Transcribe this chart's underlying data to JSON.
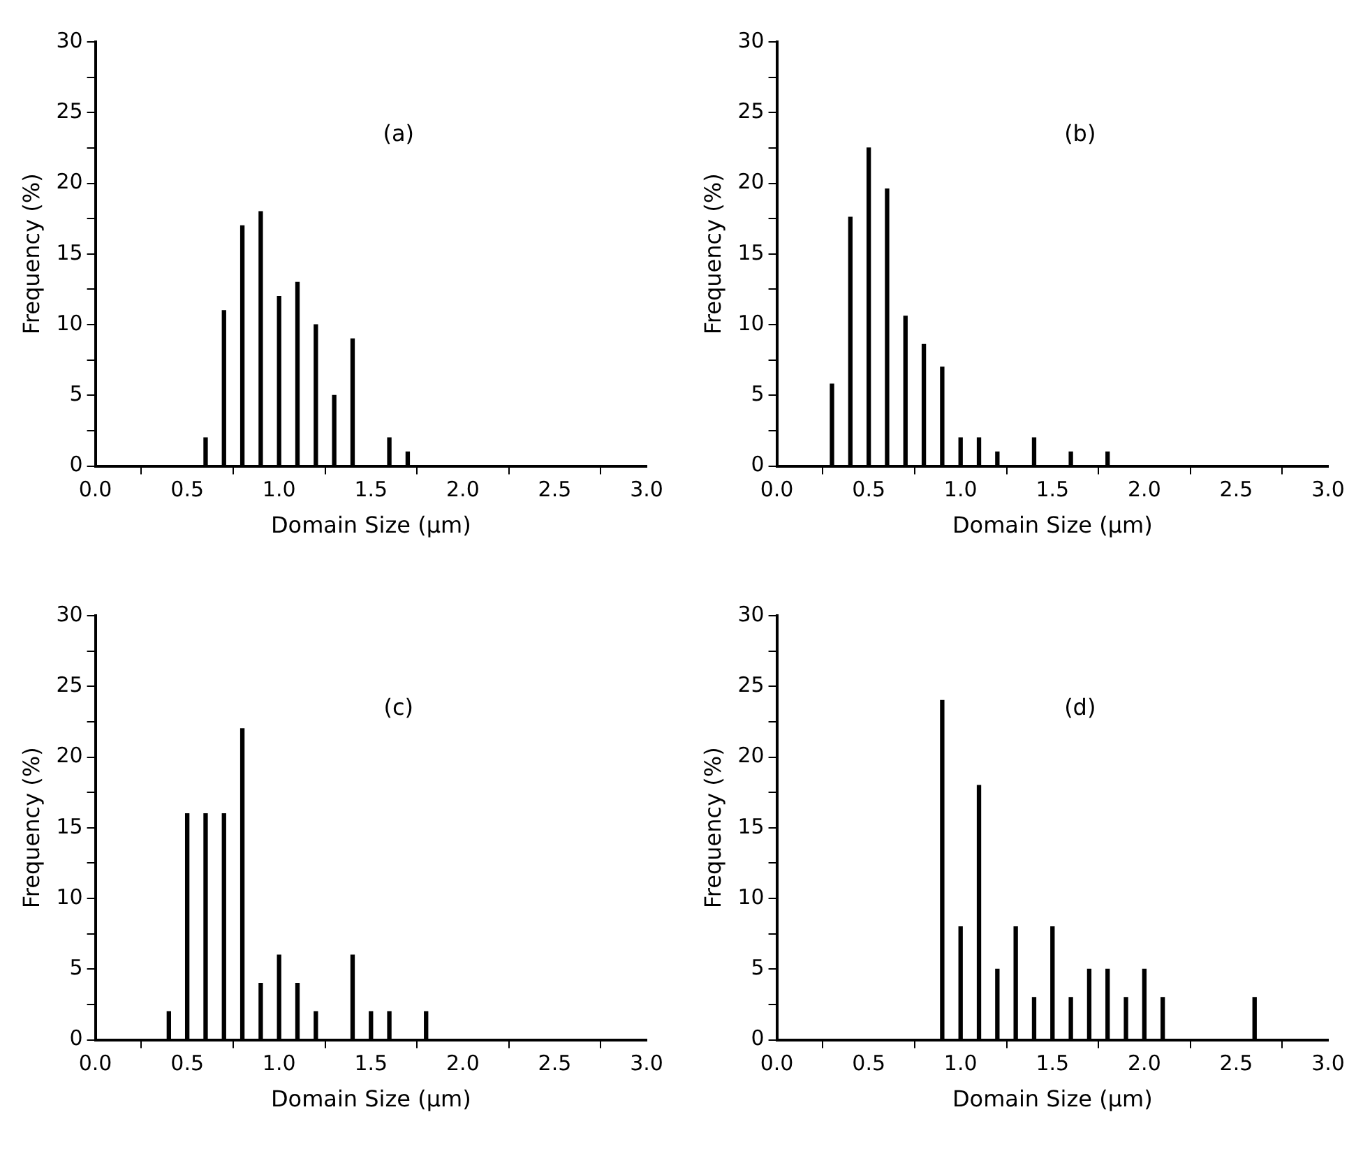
{
  "chart_data": [
    {
      "type": "bar",
      "xlabel": "Domain Size (µm)",
      "ylabel": "Frequency (%)",
      "annotations": [
        "(a)"
      ],
      "x": [
        0.6,
        0.7,
        0.8,
        0.9,
        1.0,
        1.1,
        1.2,
        1.3,
        1.4,
        1.6,
        1.7
      ],
      "values": [
        2,
        11,
        17,
        18,
        12,
        13,
        10,
        5,
        9,
        2,
        1
      ],
      "color": "#000000",
      "xlim": [
        0,
        3
      ],
      "xticks": [
        {
          "value": 0,
          "label": "0.0"
        },
        0.5,
        {
          "value": 1,
          "label": "1.0"
        },
        1.5,
        {
          "value": 2,
          "label": "2.0"
        },
        2.5,
        {
          "value": 3,
          "label": "3.0"
        }
      ],
      "ylim": [
        0,
        30
      ],
      "yticks": [
        0,
        {
          "value": 2.5,
          "label": null
        },
        5,
        {
          "value": 7.5,
          "label": null
        },
        10,
        {
          "value": 12.5,
          "label": null
        },
        15,
        {
          "value": 17.5,
          "label": null
        },
        20,
        {
          "value": 22.5,
          "label": null
        },
        25,
        {
          "value": 27.5,
          "label": null
        },
        30
      ],
      "grid": false,
      "legend": false
    },
    {
      "type": "bar",
      "xlabel": "Domain Size (µm)",
      "ylabel": "Frequency (%)",
      "annotations": [
        "(b)"
      ],
      "x": [
        0.3,
        0.4,
        0.5,
        0.6,
        0.7,
        0.8,
        0.9,
        1.0,
        1.1,
        1.2,
        1.4,
        1.6,
        1.8
      ],
      "values": [
        5.8,
        17.6,
        22.5,
        19.6,
        10.6,
        8.6,
        7,
        2,
        2,
        1,
        2,
        1,
        1
      ],
      "color": "#000000",
      "xlim": [
        0,
        3
      ],
      "xticks": [
        {
          "value": 0,
          "label": "0.0"
        },
        0.5,
        {
          "value": 1,
          "label": "1.0"
        },
        1.5,
        {
          "value": 2,
          "label": "2.0"
        },
        2.5,
        {
          "value": 3,
          "label": "3.0"
        }
      ],
      "ylim": [
        0,
        30
      ],
      "yticks": [
        0,
        {
          "value": 2.5,
          "label": null
        },
        5,
        {
          "value": 7.5,
          "label": null
        },
        10,
        {
          "value": 12.5,
          "label": null
        },
        15,
        {
          "value": 17.5,
          "label": null
        },
        20,
        {
          "value": 22.5,
          "label": null
        },
        25,
        {
          "value": 27.5,
          "label": null
        },
        30
      ],
      "grid": false,
      "legend": false
    },
    {
      "type": "bar",
      "xlabel": "Domain Size (µm)",
      "ylabel": "Frequency (%)",
      "annotations": [
        "(c)"
      ],
      "x": [
        0.4,
        0.5,
        0.6,
        0.7,
        0.8,
        0.9,
        1.0,
        1.1,
        1.2,
        1.4,
        1.5,
        1.6,
        1.8
      ],
      "values": [
        2,
        16,
        16,
        16,
        22,
        4,
        6,
        4,
        2,
        6,
        2,
        2,
        2
      ],
      "color": "#000000",
      "xlim": [
        0,
        3
      ],
      "xticks": [
        {
          "value": 0,
          "label": "0.0"
        },
        0.5,
        {
          "value": 1,
          "label": "1.0"
        },
        1.5,
        {
          "value": 2,
          "label": "2.0"
        },
        2.5,
        {
          "value": 3,
          "label": "3.0"
        }
      ],
      "ylim": [
        0,
        30
      ],
      "yticks": [
        0,
        {
          "value": 2.5,
          "label": null
        },
        5,
        {
          "value": 7.5,
          "label": null
        },
        10,
        {
          "value": 12.5,
          "label": null
        },
        15,
        {
          "value": 17.5,
          "label": null
        },
        20,
        {
          "value": 22.5,
          "label": null
        },
        25,
        {
          "value": 27.5,
          "label": null
        },
        30
      ],
      "grid": false,
      "legend": false
    },
    {
      "type": "bar",
      "xlabel": "Domain Size (µm)",
      "ylabel": "Frequency (%)",
      "annotations": [
        "(d)"
      ],
      "x": [
        0.9,
        1.0,
        1.1,
        1.2,
        1.3,
        1.4,
        1.5,
        1.6,
        1.7,
        1.8,
        1.9,
        2.0,
        2.1,
        2.6
      ],
      "values": [
        24,
        8,
        18,
        5,
        8,
        3,
        8,
        3,
        5,
        5,
        3,
        5,
        3,
        3
      ],
      "color": "#000000",
      "xlim": [
        0,
        3
      ],
      "xticks": [
        {
          "value": 0,
          "label": "0.0"
        },
        0.5,
        {
          "value": 1,
          "label": "1.0"
        },
        1.5,
        {
          "value": 2,
          "label": "2.0"
        },
        2.5,
        {
          "value": 3,
          "label": "3.0"
        }
      ],
      "ylim": [
        0,
        30
      ],
      "yticks": [
        0,
        {
          "value": 2.5,
          "label": null
        },
        5,
        {
          "value": 7.5,
          "label": null
        },
        10,
        {
          "value": 12.5,
          "label": null
        },
        15,
        {
          "value": 17.5,
          "label": null
        },
        20,
        {
          "value": 22.5,
          "label": null
        },
        25,
        {
          "value": 27.5,
          "label": null
        },
        30
      ],
      "grid": false,
      "legend": false
    }
  ]
}
